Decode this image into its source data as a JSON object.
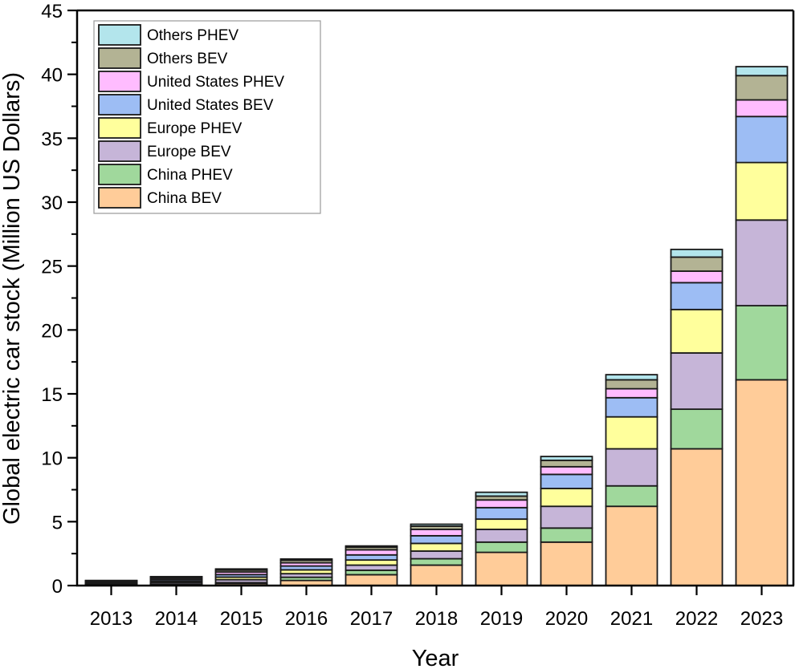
{
  "chart_data": {
    "type": "bar",
    "stacked": true,
    "title": "",
    "xlabel": "Year",
    "ylabel": "Global electric car stock (Million US Dollars)",
    "ylim": [
      0,
      45
    ],
    "yticks": [
      0,
      5,
      10,
      15,
      20,
      25,
      30,
      35,
      40,
      45
    ],
    "grid": false,
    "legend_position": "top-left",
    "categories": [
      "2013",
      "2014",
      "2015",
      "2016",
      "2017",
      "2018",
      "2019",
      "2020",
      "2021",
      "2022",
      "2023"
    ],
    "series": [
      {
        "name": "China BEV",
        "color": "#FFCC99",
        "values": [
          0.05,
          0.08,
          0.15,
          0.4,
          0.85,
          1.6,
          2.6,
          3.4,
          6.2,
          10.7,
          16.1
        ]
      },
      {
        "name": "China PHEV",
        "color": "#A0D89C",
        "values": [
          0.02,
          0.04,
          0.08,
          0.25,
          0.35,
          0.5,
          0.8,
          1.1,
          1.6,
          3.1,
          5.8
        ]
      },
      {
        "name": "Europe BEV",
        "color": "#C6B5D8",
        "values": [
          0.07,
          0.13,
          0.23,
          0.28,
          0.4,
          0.6,
          1.0,
          1.7,
          2.9,
          4.4,
          6.7
        ]
      },
      {
        "name": "Europe PHEV",
        "color": "#FFFF9C",
        "values": [
          0.05,
          0.1,
          0.2,
          0.3,
          0.4,
          0.6,
          0.8,
          1.4,
          2.5,
          3.4,
          4.5
        ]
      },
      {
        "name": "United States BEV",
        "color": "#9DBDF4",
        "values": [
          0.07,
          0.13,
          0.2,
          0.3,
          0.4,
          0.6,
          0.9,
          1.1,
          1.5,
          2.1,
          3.6
        ]
      },
      {
        "name": "United States PHEV",
        "color": "#FFBCFF",
        "values": [
          0.07,
          0.12,
          0.2,
          0.25,
          0.4,
          0.5,
          0.6,
          0.6,
          0.7,
          0.9,
          1.3
        ]
      },
      {
        "name": "Others BEV",
        "color": "#B3B394",
        "values": [
          0.05,
          0.07,
          0.15,
          0.2,
          0.2,
          0.25,
          0.3,
          0.5,
          0.7,
          1.1,
          1.9
        ]
      },
      {
        "name": "Others PHEV",
        "color": "#B3E5EC",
        "values": [
          0.02,
          0.03,
          0.09,
          0.1,
          0.1,
          0.15,
          0.3,
          0.3,
          0.4,
          0.6,
          0.7
        ]
      }
    ],
    "legend_order": [
      "Others PHEV",
      "Others BEV",
      "United States PHEV",
      "United States BEV",
      "Europe PHEV",
      "Europe BEV",
      "China PHEV",
      "China BEV"
    ]
  }
}
